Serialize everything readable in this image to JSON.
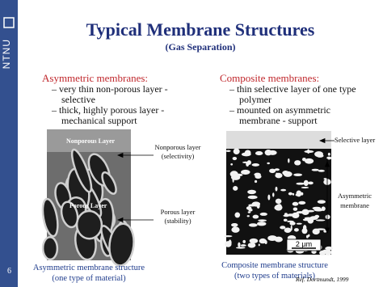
{
  "sidebar": {
    "logo": "NTNU",
    "page": "6"
  },
  "header": {
    "title": "Typical Membrane Structures",
    "subtitle": "(Gas Separation)"
  },
  "left": {
    "heading": "Asymmetric membranes:",
    "bullets": [
      [
        "– very thin non-porous layer -",
        "selective"
      ],
      [
        "– thick, highly porous layer -",
        "mechanical support"
      ]
    ],
    "image_labels": [
      "Nonporous Layer",
      "Porous Layer"
    ],
    "annotations": [
      [
        "Nonporous layer",
        "(selectivity)"
      ],
      [
        "Porous layer",
        "(stability)"
      ]
    ],
    "caption": [
      "Asymmetric membrane structure",
      "(one type of material)"
    ]
  },
  "right": {
    "heading": "Composite membranes:",
    "bullets": [
      [
        "– thin selective layer of one type",
        "polymer"
      ],
      [
        "– mounted on asymmetric",
        "membrane - support"
      ]
    ],
    "scale": "2 µm",
    "annotations": [
      [
        "Selective layer"
      ],
      [
        "Asymmetric",
        "membrane"
      ]
    ],
    "caption": [
      "Composite membrane structure",
      "(two types of materials)"
    ]
  },
  "reference": "Ref. Dortmundt, 1999"
}
